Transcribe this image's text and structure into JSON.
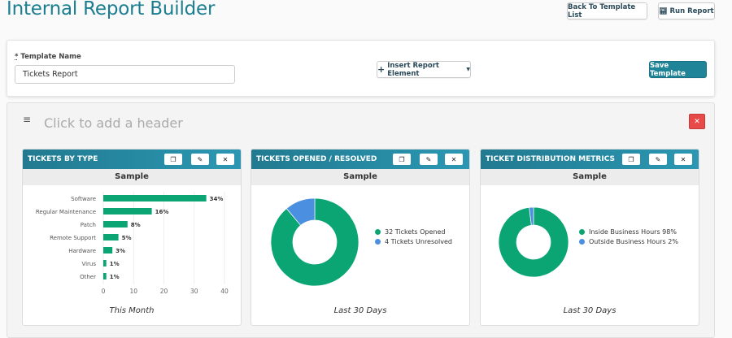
{
  "header": {
    "title": "Internal Report Builder",
    "back_label": "Back To Template List",
    "run_label": "Run Report"
  },
  "form": {
    "required_mark": "*",
    "template_name_label": "Template Name",
    "template_name_value": "Tickets Report",
    "insert_label": "Insert Report Element",
    "save_label": "Save Template"
  },
  "section": {
    "header_placeholder": "Click to add a header"
  },
  "colors": {
    "accent": "#1f8498",
    "green": "#0ba574",
    "blue": "#4a8fe0",
    "danger": "#e84a4a"
  },
  "cards": [
    {
      "title": "TICKETS BY TYPE",
      "sample": "Sample",
      "caption": "This Month"
    },
    {
      "title": "TICKETS OPENED / RESOLVED",
      "sample": "Sample",
      "caption": "Last 30 Days"
    },
    {
      "title": "TICKET DISTRIBUTION METRICS",
      "sample": "Sample",
      "caption": "Last 30 Days"
    }
  ],
  "chart_data": [
    {
      "type": "bar",
      "orientation": "horizontal",
      "categories": [
        "Software",
        "Regular Maintenance",
        "Patch",
        "Remote Support",
        "Hardware",
        "Virus",
        "Other"
      ],
      "values": [
        34,
        16,
        8,
        5,
        3,
        1,
        1
      ],
      "data_labels": [
        "34%",
        "16%",
        "8%",
        "5%",
        "3%",
        "1%",
        "1%"
      ],
      "xlim": [
        0,
        40
      ],
      "xticks": [
        "0",
        "10",
        "20",
        "30",
        "40"
      ],
      "grid": true
    },
    {
      "type": "pie",
      "donut": true,
      "labels": [
        "32 Tickets Opened",
        "4 Tickets Unresolved"
      ],
      "values": [
        32,
        4
      ],
      "colors": [
        "#0ba574",
        "#4a8fe0"
      ],
      "legend": "right"
    },
    {
      "type": "pie",
      "donut": true,
      "labels": [
        "Inside Business Hours 98%",
        "Outside Business Hours 2%"
      ],
      "values": [
        98,
        2
      ],
      "colors": [
        "#0ba574",
        "#4a8fe0"
      ],
      "legend": "right"
    }
  ]
}
